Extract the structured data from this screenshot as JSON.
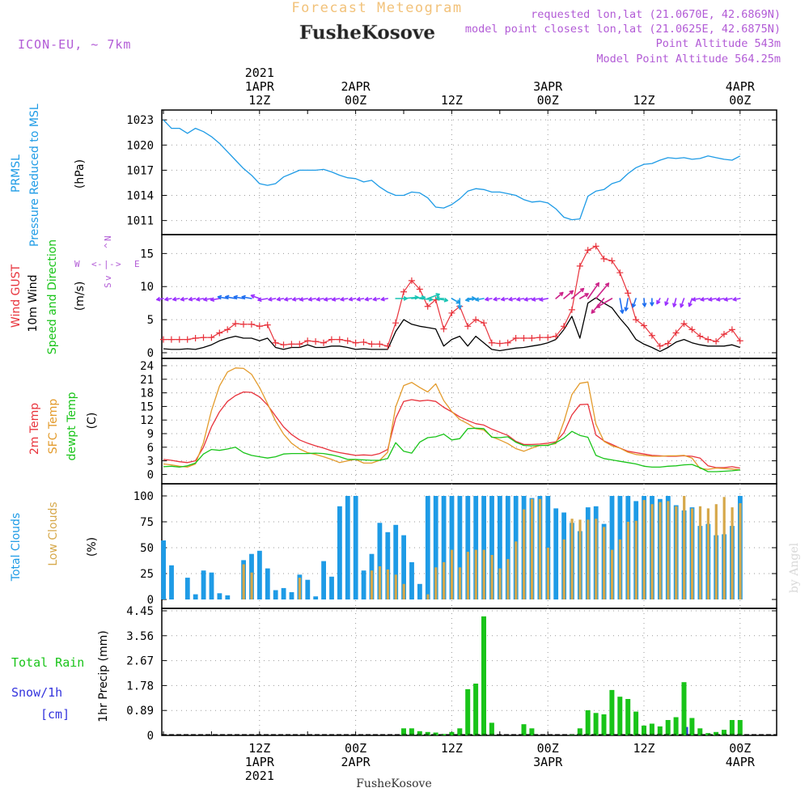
{
  "header": {
    "subtitle": "Forecast Meteogram",
    "station": "FusheKosove",
    "model": "ICON-EU, ~ 7km",
    "requested": "requested lon,lat (21.0670E, 42.6869N)",
    "closest": "model point closest lon,lat (21.0625E, 42.6875N)",
    "point_alt": "Point Altitude 543m",
    "model_alt": "Model Point Altitude 564.25m",
    "footer_station": "FusheKosove",
    "credit": "by Angel"
  },
  "colors": {
    "pressure": "#1e9be6",
    "gust": "#e8333c",
    "wind": "#000000",
    "t2m": "#e8333c",
    "sfc": "#e39b2c",
    "dewpt": "#19c419",
    "total_clouds": "#1e9be6",
    "low_clouds": "#d6a84a",
    "rain": "#19c419",
    "snow": "#3333dd",
    "label_purple": "#b25bd6",
    "title_orange": "#f2c27a"
  },
  "time_axis": {
    "top_labels": [
      {
        "h": 12,
        "lines": [
          "2021",
          "1APR",
          "12Z"
        ]
      },
      {
        "h": 24,
        "lines": [
          "2APR",
          "00Z"
        ]
      },
      {
        "h": 36,
        "lines": [
          "12Z"
        ]
      },
      {
        "h": 48,
        "lines": [
          "3APR",
          "00Z"
        ]
      },
      {
        "h": 60,
        "lines": [
          "12Z"
        ]
      },
      {
        "h": 72,
        "lines": [
          "4APR",
          "00Z"
        ]
      }
    ],
    "bottom_labels": [
      {
        "h": 12,
        "lines": [
          "12Z",
          "1APR",
          "2021"
        ]
      },
      {
        "h": 24,
        "lines": [
          "00Z",
          "2APR"
        ]
      },
      {
        "h": 36,
        "lines": [
          "12Z"
        ]
      },
      {
        "h": 48,
        "lines": [
          "00Z",
          "3APR"
        ]
      },
      {
        "h": 60,
        "lines": [
          "12Z"
        ]
      },
      {
        "h": 72,
        "lines": [
          "00Z",
          "4APR"
        ]
      }
    ]
  },
  "chart_data": [
    {
      "type": "line",
      "title": "PRMSL Pressure Reduced to MSL",
      "ylabel": "(hPa)",
      "x_unit": "hours from 2021-04-01 00Z",
      "ylim": [
        1010,
        1023.5
      ],
      "yticks": [
        1011,
        1014,
        1017,
        1020,
        1023
      ],
      "series": [
        {
          "name": "PRMSL",
          "values": [
            1023,
            1022,
            1022,
            1021.4,
            1022,
            1021.6,
            1021,
            1020.2,
            1019.2,
            1018.2,
            1017.2,
            1016.4,
            1015.4,
            1015.2,
            1015.4,
            1016.2,
            1016.6,
            1017,
            1017,
            1017,
            1017.1,
            1016.8,
            1016.4,
            1016.1,
            1016,
            1015.6,
            1015.8,
            1015,
            1014.4,
            1014,
            1014,
            1014.4,
            1014.3,
            1013.7,
            1012.6,
            1012.5,
            1012.9,
            1013.6,
            1014.5,
            1014.8,
            1014.7,
            1014.4,
            1014.4,
            1014.2,
            1014,
            1013.5,
            1013.2,
            1013.3,
            1013.1,
            1012.4,
            1011.4,
            1011.1,
            1011.2,
            1013.9,
            1014.5,
            1014.7,
            1015.4,
            1015.7,
            1016.6,
            1017.3,
            1017.7,
            1017.8,
            1018.2,
            1018.5,
            1018.4,
            1018.5,
            1018.3,
            1018.4,
            1018.7,
            1018.5,
            1018.3,
            1018.2,
            1018.7
          ]
        }
      ]
    },
    {
      "type": "line",
      "title": "Wind GUST / 10m Wind Speed and Direction",
      "ylabel": "(m/s)",
      "ylim": [
        0,
        17
      ],
      "yticks": [
        0,
        5,
        10,
        15
      ],
      "direction_key": {
        "n": "N",
        "s": "S",
        "e": "E",
        "w": "W",
        "up": "^",
        "down": "v",
        "dash": "-",
        "pipe": "|",
        "lt": "<",
        "gt": ">"
      },
      "series": [
        {
          "name": "Wind GUST",
          "values": [
            2,
            2,
            2,
            2,
            2.2,
            2.3,
            2.3,
            3,
            3.5,
            4.4,
            4.3,
            4.3,
            4,
            4.2,
            1.5,
            1.2,
            1.3,
            1.3,
            1.8,
            1.7,
            1.5,
            2,
            2,
            1.8,
            1.5,
            1.6,
            1.3,
            1.3,
            1,
            4.5,
            9.2,
            10.9,
            9.6,
            7,
            8,
            3.6,
            6,
            7,
            4,
            5,
            4.5,
            1.5,
            1.4,
            1.5,
            2.2,
            2.2,
            2.2,
            2.3,
            2.3,
            2.5,
            4,
            6.5,
            13.1,
            15.5,
            16.1,
            14.2,
            13.9,
            12.1,
            9,
            5,
            4.1,
            2.6,
            1,
            1.4,
            3,
            4.4,
            3.5,
            2.5,
            2,
            1.7,
            2.8,
            3.5,
            1.8
          ]
        },
        {
          "name": "10m Wind",
          "values": [
            0.6,
            0.5,
            0.5,
            0.6,
            0.5,
            0.8,
            1.2,
            1.8,
            2.2,
            2.5,
            2.2,
            2.2,
            1.8,
            2.2,
            0.8,
            0.5,
            0.8,
            0.8,
            1.2,
            0.8,
            0.8,
            1,
            1,
            0.8,
            0.5,
            0.6,
            0.5,
            0.5,
            0.5,
            3.2,
            5,
            4.3,
            4,
            3.8,
            3.6,
            1,
            2,
            2.5,
            1,
            2.5,
            1.5,
            0.5,
            0.3,
            0.5,
            0.7,
            0.8,
            1,
            1.2,
            1.5,
            2,
            3.5,
            5.5,
            2.2,
            7.5,
            8.3,
            7.5,
            6.8,
            5.2,
            3.8,
            2,
            1.3,
            0.8,
            0.2,
            0.8,
            1.6,
            2,
            1.5,
            1.2,
            1,
            1,
            1,
            1.2,
            0.8
          ]
        }
      ]
    },
    {
      "type": "line",
      "title": "2m Temp / SFC Temp / dewpt Temp",
      "ylabel": "(C)",
      "ylim": [
        -1,
        24
      ],
      "yticks": [
        0,
        3,
        6,
        9,
        12,
        15,
        18,
        21,
        24
      ],
      "series": [
        {
          "name": "2m Temp",
          "values": [
            3.3,
            3.1,
            2.8,
            2.6,
            3,
            6,
            10.5,
            13.8,
            16.1,
            17.4,
            18.2,
            18.1,
            17.1,
            15.3,
            12.9,
            10.5,
            8.8,
            7.6,
            6.9,
            6.3,
            5.8,
            5.2,
            4.8,
            4.5,
            4.2,
            4.3,
            4.2,
            4.6,
            5.5,
            12.4,
            16.1,
            16.5,
            16.2,
            16.4,
            16.1,
            14.8,
            13.8,
            12.7,
            11.9,
            11.2,
            10.9,
            10,
            9.3,
            8.6,
            7.3,
            6.6,
            6.6,
            6.7,
            6.9,
            7.2,
            9.2,
            13.1,
            15.4,
            15.5,
            8.7,
            7.4,
            6.6,
            5.8,
            5.1,
            4.8,
            4.5,
            4.2,
            4.1,
            4,
            4,
            4.1,
            4,
            3.6,
            1.9,
            1.5,
            1.5,
            1.7,
            1.4
          ]
        },
        {
          "name": "SFC Temp",
          "values": [
            2.3,
            2.1,
            1.8,
            1.6,
            2.3,
            7,
            14.1,
            19.5,
            22.6,
            23.5,
            23.4,
            22.1,
            19.2,
            15.6,
            11.8,
            8.9,
            6.9,
            5.6,
            4.8,
            4.4,
            3.9,
            3.3,
            2.6,
            3,
            3.3,
            2.5,
            2.5,
            3.1,
            4.9,
            14.9,
            19.6,
            20.3,
            19.2,
            18.2,
            20,
            16.3,
            13.9,
            12.1,
            11.2,
            10.1,
            9.8,
            8.3,
            7.6,
            6.8,
            5.7,
            5.1,
            5.8,
            6.4,
            6.5,
            6.8,
            11.6,
            17.6,
            20.1,
            20.4,
            11.1,
            7.3,
            6.3,
            5.8,
            4.9,
            4.4,
            4.2,
            4,
            4,
            4.1,
            4.1,
            4.2,
            3.6,
            1.3,
            1.1,
            1.4,
            1.3,
            1.2,
            1
          ]
        },
        {
          "name": "dewpt Temp",
          "values": [
            1.7,
            1.8,
            1.6,
            1.9,
            2.5,
            4.5,
            5.5,
            5.3,
            5.6,
            6,
            4.8,
            4.2,
            3.9,
            3.6,
            3.9,
            4.5,
            4.6,
            4.6,
            4.6,
            4.7,
            4.6,
            4.3,
            3.9,
            3.3,
            3.3,
            3.2,
            3.1,
            3.1,
            3.5,
            7,
            5.1,
            4.7,
            7.1,
            8.1,
            8.3,
            8.9,
            7.6,
            7.9,
            10.1,
            10.2,
            10.1,
            8.2,
            8.1,
            8.3,
            7.1,
            6.4,
            6.3,
            6.4,
            6.4,
            7,
            8,
            9.5,
            8.6,
            8.2,
            4.2,
            3.5,
            3.2,
            2.9,
            2.6,
            2.3,
            1.8,
            1.6,
            1.6,
            1.8,
            1.9,
            2.1,
            2.2,
            1.5,
            0.6,
            0.6,
            0.7,
            0.8,
            1
          ]
        }
      ]
    },
    {
      "type": "bar",
      "title": "Total Clouds / Low Clouds",
      "ylabel": "(%)",
      "ylim": [
        0,
        100
      ],
      "yticks": [
        0,
        25,
        50,
        75,
        100
      ],
      "series": [
        {
          "name": "Total Clouds",
          "values": [
            57,
            33,
            0,
            21,
            5,
            28,
            26,
            6,
            4,
            0,
            38,
            44,
            47,
            30,
            9,
            11,
            7,
            24,
            19,
            3,
            37,
            22,
            90,
            100,
            100,
            28,
            44,
            74,
            65,
            72,
            62,
            36,
            15,
            100,
            100,
            100,
            100,
            100,
            100,
            100,
            100,
            100,
            100,
            100,
            100,
            100,
            98,
            100,
            100,
            88,
            84,
            74,
            66,
            89,
            90,
            73,
            100,
            100,
            100,
            95,
            100,
            100,
            97,
            100,
            91,
            86,
            89,
            71,
            73,
            62,
            63,
            71,
            100
          ]
        },
        {
          "name": "Low Clouds",
          "values": [
            0,
            0,
            0,
            0,
            0,
            0,
            0,
            0,
            0,
            0,
            34,
            26,
            0,
            0,
            0,
            0,
            0,
            21,
            0,
            0,
            0,
            0,
            0,
            0,
            0,
            0,
            28,
            32,
            29,
            24,
            15,
            0,
            0,
            5,
            31,
            36,
            48,
            31,
            46,
            48,
            48,
            43,
            30,
            39,
            56,
            87,
            97,
            97,
            50,
            0,
            58,
            78,
            77,
            77,
            78,
            70,
            48,
            58,
            75,
            76,
            96,
            92,
            94,
            95,
            90,
            100,
            88,
            90,
            88,
            92,
            99,
            89,
            93
          ]
        }
      ]
    },
    {
      "type": "bar",
      "title": "Total Rain / Snow/1h [cm]",
      "ylabel": "1hr Precip (mm)",
      "ylim": [
        0,
        4.45
      ],
      "yticks": [
        0,
        0.89,
        1.78,
        2.67,
        3.56,
        4.45
      ],
      "ytick_labels": [
        "0",
        "0.89",
        "1.78",
        "2.67",
        "3.56",
        "4.45"
      ],
      "series": [
        {
          "name": "Total Rain",
          "values": [
            0,
            0,
            0,
            0,
            0,
            0,
            0,
            0,
            0,
            0,
            0,
            0,
            0,
            0,
            0,
            0,
            0,
            0,
            0,
            0,
            0,
            0,
            0,
            0,
            0,
            0,
            0,
            0,
            0,
            0,
            0.25,
            0.25,
            0.15,
            0.12,
            0.1,
            0.05,
            0.12,
            0.25,
            1.65,
            1.85,
            4.25,
            0.45,
            0,
            0,
            0,
            0.4,
            0.25,
            0,
            0,
            0,
            0,
            0.04,
            0.25,
            0.9,
            0.8,
            0.75,
            1.62,
            1.38,
            1.3,
            0.85,
            0.35,
            0.42,
            0.32,
            0.55,
            0.65,
            1.9,
            0.62,
            0.25,
            0.08,
            0.12,
            0.2,
            0.55,
            0.55
          ]
        },
        {
          "name": "Snow/1h",
          "values": [
            0,
            0,
            0,
            0,
            0,
            0,
            0,
            0,
            0,
            0,
            0,
            0,
            0,
            0,
            0,
            0,
            0,
            0,
            0,
            0,
            0,
            0,
            0,
            0,
            0,
            0,
            0,
            0,
            0,
            0,
            0,
            0,
            0,
            0,
            0,
            0,
            0,
            0,
            0,
            0,
            0,
            0,
            0,
            0,
            0,
            0,
            0,
            0,
            0,
            0,
            0,
            0,
            0,
            0,
            0,
            0,
            0,
            0,
            0,
            0,
            0,
            0,
            0,
            0,
            0,
            0.3,
            0,
            0,
            0,
            0,
            0,
            0,
            0
          ]
        }
      ]
    }
  ],
  "wind_arrows": {
    "direction_deg": [
      80,
      80,
      80,
      80,
      80,
      80,
      80,
      80,
      100,
      100,
      100,
      100,
      110,
      80,
      80,
      80,
      80,
      80,
      80,
      80,
      80,
      80,
      80,
      80,
      80,
      80,
      80,
      80,
      80,
      270,
      265,
      265,
      275,
      250,
      280,
      90,
      300,
      0,
      270,
      80,
      80,
      80,
      80,
      80,
      80,
      80,
      80,
      80,
      80,
      230,
      230,
      230,
      240,
      215,
      220,
      40,
      60,
      350,
      10,
      20,
      355,
      0,
      30,
      20,
      15,
      20,
      20,
      80,
      80,
      80,
      80,
      80,
      80
    ],
    "style_by_hour": [
      {
        "from": 0,
        "to": 8,
        "color": "#9b30ff"
      },
      {
        "from": 8,
        "to": 12,
        "color": "#1e6ef0"
      },
      {
        "from": 12,
        "to": 29,
        "color": "#9b30ff"
      },
      {
        "from": 29,
        "to": 36,
        "color": "#19c4b4"
      },
      {
        "from": 36,
        "to": 41,
        "color": "#1e9be6"
      },
      {
        "from": 41,
        "to": 49,
        "color": "#9b30ff"
      },
      {
        "from": 49,
        "to": 57,
        "color": "#cc2288"
      },
      {
        "from": 57,
        "to": 62,
        "color": "#1e6ef0"
      },
      {
        "from": 62,
        "to": 73,
        "color": "#9b30ff"
      }
    ]
  }
}
